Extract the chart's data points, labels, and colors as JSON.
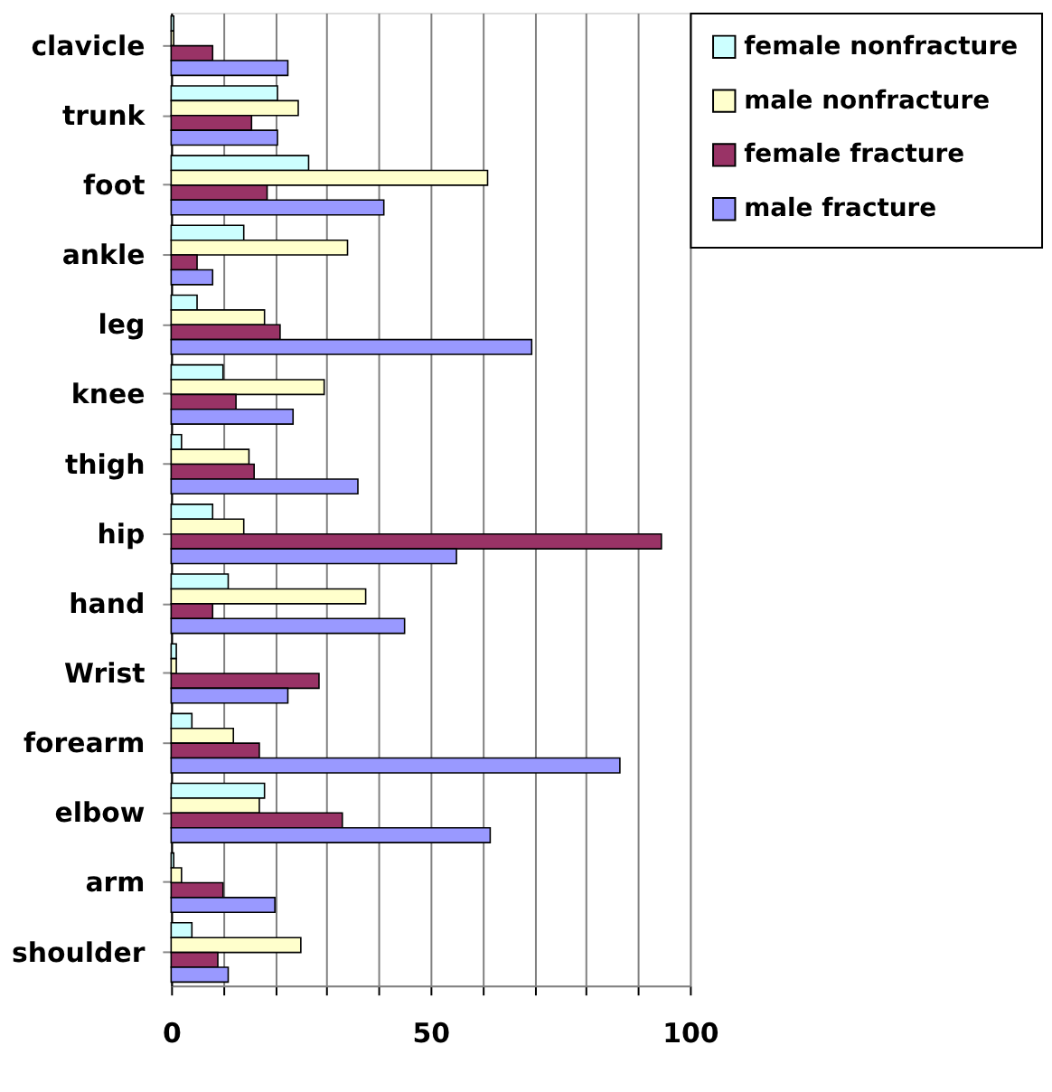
{
  "chart_data": {
    "type": "bar",
    "orientation": "horizontal",
    "categories": [
      "clavicle",
      "trunk",
      "foot",
      "ankle",
      "leg",
      "knee",
      "thigh",
      "hip",
      "hand",
      "Wrist",
      "forearm",
      "elbow",
      "arm",
      "shoulder"
    ],
    "series": [
      {
        "name": "female nonfracture",
        "color": "#ccffff",
        "values": [
          0.5,
          20.5,
          26.5,
          14,
          5,
          10,
          2,
          8,
          11,
          1,
          4,
          18,
          0.5,
          4
        ]
      },
      {
        "name": "male nonfracture",
        "color": "#ffffcc",
        "values": [
          0.5,
          24.5,
          61,
          34,
          18,
          29.5,
          15,
          14,
          37.5,
          1,
          12,
          17,
          2,
          25
        ]
      },
      {
        "name": "female fracture",
        "color": "#993366",
        "values": [
          8,
          15.5,
          18.5,
          5,
          21,
          12.5,
          16,
          94.5,
          8,
          28.5,
          17,
          33,
          10,
          9
        ]
      },
      {
        "name": "male fracture",
        "color": "#9999ff",
        "values": [
          22.5,
          20.5,
          41,
          8,
          69.5,
          23.5,
          36,
          55,
          45,
          22.5,
          86.5,
          61.5,
          20,
          11
        ]
      }
    ],
    "xlim": [
      0,
      100
    ],
    "xticks": [
      0,
      {
        "value": 10,
        "label": null
      },
      {
        "value": 20,
        "label": null
      },
      {
        "value": 30,
        "label": null
      },
      {
        "value": 40,
        "label": null
      },
      50,
      {
        "value": 60,
        "label": null
      },
      {
        "value": 70,
        "label": null
      },
      {
        "value": 80,
        "label": null
      },
      {
        "value": 90,
        "label": null
      },
      100
    ],
    "grid": true,
    "legend": "right"
  }
}
